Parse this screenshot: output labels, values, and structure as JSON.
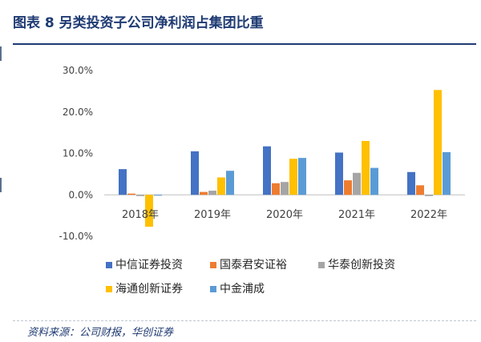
{
  "title": "图表 8 另类投资子公司净利润占集团比重",
  "source": "资料来源：公司财报，华创证券",
  "chart_data": {
    "type": "bar",
    "categories": [
      "2018年",
      "2019年",
      "2020年",
      "2021年",
      "2022年"
    ],
    "ylim": [
      -10,
      30
    ],
    "yticks": [
      "-10.0%",
      "0.0%",
      "10.0%",
      "20.0%",
      "30.0%"
    ],
    "ytick_values": [
      -10,
      0,
      10,
      20,
      30
    ],
    "grid": false,
    "legend_position": "bottom",
    "series": [
      {
        "name": "中信证券投资",
        "color": "#4472c4",
        "values": [
          6.2,
          10.5,
          11.7,
          10.2,
          5.5
        ]
      },
      {
        "name": "国泰君安证裕",
        "color": "#ed7d31",
        "values": [
          0.3,
          0.7,
          2.8,
          3.5,
          2.3
        ]
      },
      {
        "name": "华泰创新投资",
        "color": "#a5a5a5",
        "values": [
          -0.3,
          1.0,
          3.1,
          5.3,
          -0.3
        ]
      },
      {
        "name": "海通创新证券",
        "color": "#ffc000",
        "values": [
          -7.7,
          4.2,
          8.7,
          13.0,
          25.3
        ]
      },
      {
        "name": "中金浦成",
        "color": "#5b9bd5",
        "values": [
          -0.2,
          5.8,
          8.9,
          6.5,
          10.3
        ]
      }
    ]
  }
}
